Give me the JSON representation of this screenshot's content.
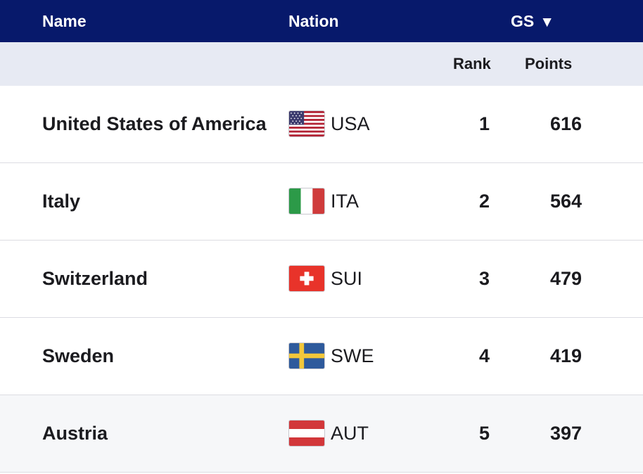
{
  "header": {
    "name": "Name",
    "nation": "Nation",
    "gs": "GS",
    "sort_glyph": "▼"
  },
  "subheader": {
    "rank": "Rank",
    "points": "Points"
  },
  "rows": [
    {
      "name": "United States of America",
      "code": "USA",
      "flag": "usa-flag-icon",
      "rank": "1",
      "points": "616"
    },
    {
      "name": "Italy",
      "code": "ITA",
      "flag": "italy-flag-icon",
      "rank": "2",
      "points": "564"
    },
    {
      "name": "Switzerland",
      "code": "SUI",
      "flag": "switzerland-flag-icon",
      "rank": "3",
      "points": "479"
    },
    {
      "name": "Sweden",
      "code": "SWE",
      "flag": "sweden-flag-icon",
      "rank": "4",
      "points": "419"
    },
    {
      "name": "Austria",
      "code": "AUT",
      "flag": "austria-flag-icon",
      "rank": "5",
      "points": "397"
    }
  ],
  "colors": {
    "header_bg": "#07196b",
    "subheader_bg": "#e7eaf3",
    "hovered_row_bg": "#f6f7f9"
  }
}
